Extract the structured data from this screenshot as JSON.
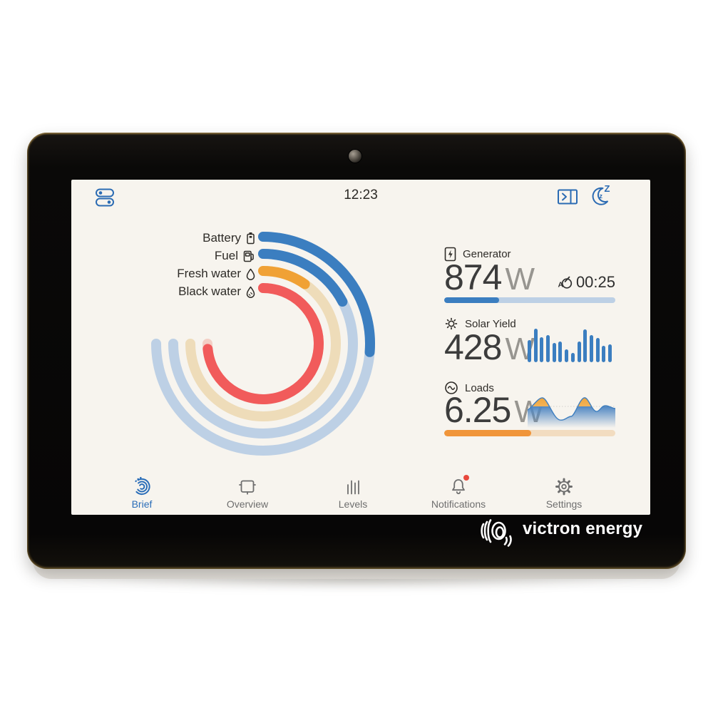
{
  "status_bar": {
    "time": "12:23",
    "left_icon": "toggles-icon",
    "right_icons": [
      "remote-console-icon",
      "sleep-moon-icon"
    ]
  },
  "gauges": {
    "sweep_deg": 270,
    "items": [
      {
        "label": "Battery",
        "icon": "battery-icon",
        "percent": 35,
        "color": "#3b7ec0",
        "track": "#bdd0e5"
      },
      {
        "label": "Fuel",
        "icon": "fuel-pump-icon",
        "percent": 23,
        "color": "#3b7ec0",
        "track": "#bdd0e5"
      },
      {
        "label": "Fresh water",
        "icon": "water-drop-icon",
        "percent": 13,
        "color": "#f0a135",
        "track": "#eedcb9"
      },
      {
        "label": "Black water",
        "icon": "black-water-drop-icon",
        "percent": 98,
        "color": "#f15b5b",
        "track": "#f3cfc5"
      }
    ]
  },
  "metrics": {
    "generator": {
      "label": "Generator",
      "icon": "generator-icon",
      "value": "874",
      "unit": "W",
      "runtime": "00:25",
      "runtime_icon": "auto-run-icon",
      "progress_percent": 32,
      "bar_color": "#3b7ec0",
      "bar_track": "#bdd0e5"
    },
    "solar": {
      "label": "Solar Yield",
      "icon": "sun-icon",
      "value": "428",
      "unit": "W",
      "bar_color": "#3b7ec0",
      "bars": [
        66,
        100,
        74,
        80,
        58,
        62,
        38,
        27,
        62,
        97,
        80,
        72,
        48,
        54
      ]
    },
    "loads": {
      "label": "Loads",
      "icon": "ac-loads-icon",
      "value": "6.25",
      "unit": "W",
      "progress_percent": 51,
      "bar_color": "#f0953a",
      "bar_track": "#f2dcc0"
    }
  },
  "nav": {
    "items": [
      {
        "label": "Brief",
        "icon": "brief-swirl-icon",
        "active": true,
        "badge": false
      },
      {
        "label": "Overview",
        "icon": "overview-icon",
        "active": false,
        "badge": false
      },
      {
        "label": "Levels",
        "icon": "levels-icon",
        "active": false,
        "badge": false
      },
      {
        "label": "Notifications",
        "icon": "bell-icon",
        "active": false,
        "badge": true
      },
      {
        "label": "Settings",
        "icon": "gear-icon",
        "active": false,
        "badge": false
      }
    ]
  },
  "branding": {
    "logo_text": "victron energy",
    "logo_icon": "victron-swirl-icon"
  },
  "colors": {
    "screen_bg": "#f7f4ee",
    "accent_blue": "#3b7ec0",
    "track_blue": "#bdd0e5",
    "orange": "#f0a135",
    "track_beige": "#eedcb9",
    "red": "#f15b5b",
    "nav_inactive": "#6e6e6e",
    "nav_active": "#2a6db8",
    "badge_red": "#e8483c",
    "value_text": "#3c3c3c",
    "unit_text": "#979590",
    "top_icon_blue": "#2b6bb3"
  }
}
